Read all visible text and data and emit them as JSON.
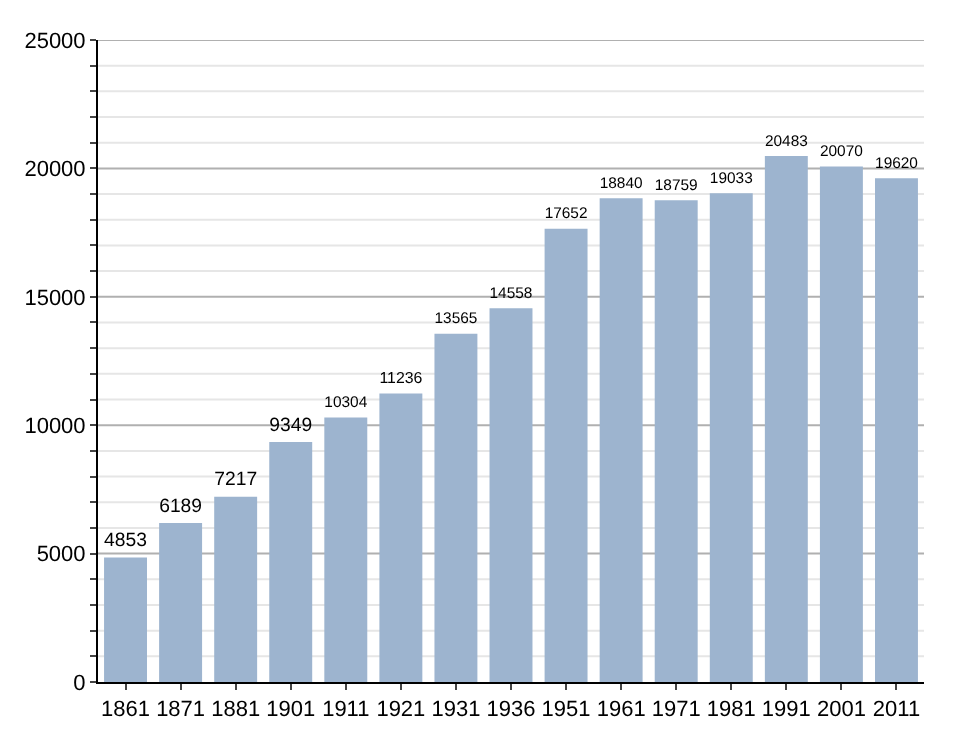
{
  "chart_data": {
    "type": "bar",
    "categories": [
      "1861",
      "1871",
      "1881",
      "1901",
      "1911",
      "1921",
      "1931",
      "1936",
      "1951",
      "1961",
      "1971",
      "1981",
      "1991",
      "2001",
      "2011"
    ],
    "values": [
      4853,
      6189,
      7217,
      9349,
      10304,
      11236,
      13565,
      14558,
      17652,
      18840,
      18759,
      19033,
      20483,
      20070,
      19620
    ],
    "color": "#9db4cf",
    "data_labels": true,
    "grid": "y",
    "ylim": [
      0,
      25000
    ],
    "yticks": [
      0,
      {
        "value": 1000,
        "label": null
      },
      {
        "value": 2000,
        "label": null
      },
      {
        "value": 3000,
        "label": null
      },
      {
        "value": 4000,
        "label": null
      },
      5000,
      {
        "value": 6000,
        "label": null
      },
      {
        "value": 7000,
        "label": null
      },
      {
        "value": 8000,
        "label": null
      },
      {
        "value": 9000,
        "label": null
      },
      10000,
      {
        "value": 11000,
        "label": null
      },
      {
        "value": 12000,
        "label": null
      },
      {
        "value": 13000,
        "label": null
      },
      {
        "value": 14000,
        "label": null
      },
      15000,
      {
        "value": 16000,
        "label": null
      },
      {
        "value": 17000,
        "label": null
      },
      {
        "value": 18000,
        "label": null
      },
      {
        "value": 19000,
        "label": null
      },
      20000,
      {
        "value": 21000,
        "label": null
      },
      {
        "value": 22000,
        "label": null
      },
      {
        "value": 23000,
        "label": null
      },
      {
        "value": 24000,
        "label": null
      },
      25000
    ]
  }
}
